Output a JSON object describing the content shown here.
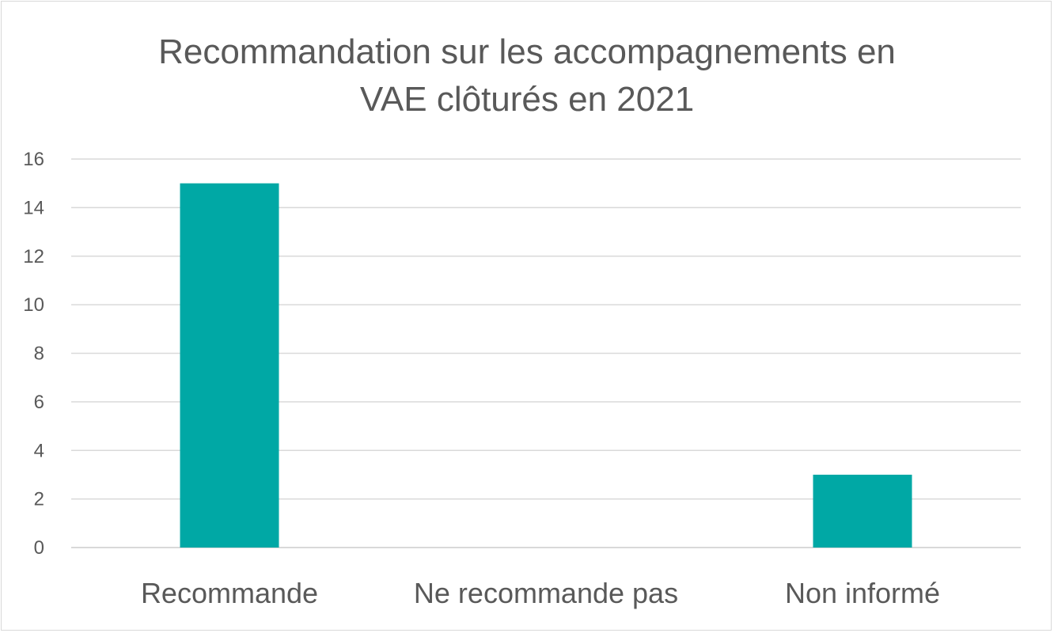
{
  "chart_data": {
    "type": "bar",
    "title": "Recommandation sur les accompagnements en\nVAE clôturés en 2021",
    "categories": [
      "Recommande",
      "Ne recommande pas",
      "Non informé"
    ],
    "values": [
      15,
      0,
      3
    ],
    "ylim": [
      0,
      16
    ],
    "yticks": [
      "0",
      "2",
      "4",
      "6",
      "8",
      "10",
      "12",
      "14",
      "16"
    ],
    "xlabel": "",
    "ylabel": "",
    "grid": true,
    "legend": "none",
    "bar_color": "#00A8A5",
    "grid_color": "#d9d9d9",
    "text_color": "#595959"
  }
}
